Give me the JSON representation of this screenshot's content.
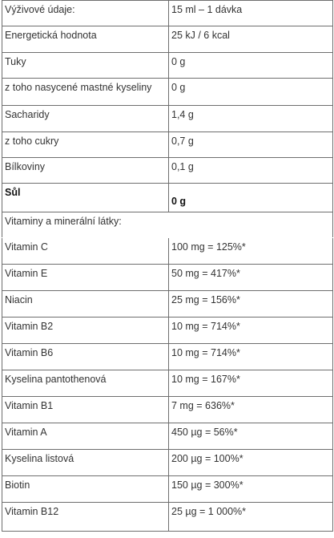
{
  "nutrition": {
    "header": {
      "label": "Výživové údaje:",
      "value": "15 ml – 1 dávka"
    },
    "rows": [
      {
        "label": "Energetická hodnota",
        "value": "25 kJ / 6 kcal"
      },
      {
        "label": "Tuky",
        "value": "0 g"
      },
      {
        "label": "z toho nasycené mastné kyseliny",
        "value": "0 g"
      },
      {
        "label": "Sacharidy",
        "value": "1,4 g"
      },
      {
        "label": "z toho cukry",
        "value": "0,7 g"
      },
      {
        "label": "Bílkoviny",
        "value": "0,1 g"
      },
      {
        "label": "Sůl",
        "value": "0 g"
      }
    ],
    "section_title": "Vitaminy a minerální látky:",
    "vitamins": [
      {
        "label": "Vitamin C",
        "value": "100 mg = 125%*"
      },
      {
        "label": "Vitamin E",
        "value": "50 mg = 417%*"
      },
      {
        "label": "Niacin",
        "value": "25 mg = 156%*"
      },
      {
        "label": "Vitamin B2",
        "value": "10 mg = 714%*"
      },
      {
        "label": "Vitamin B6",
        "value": "10 mg = 714%*"
      },
      {
        "label": "Kyselina pantothenová",
        "value": "10 mg = 167%*"
      },
      {
        "label": "Vitamin B1",
        "value": "7 mg = 636%*"
      },
      {
        "label": "Vitamin A",
        "value": "450 µg = 56%*"
      },
      {
        "label": "Kyselina listová",
        "value": "200 µg = 100%*"
      },
      {
        "label": "Biotin",
        "value": "150 µg = 300%*"
      },
      {
        "label": "Vitamin B12",
        "value": "25 µg = 1 000%*"
      }
    ]
  }
}
